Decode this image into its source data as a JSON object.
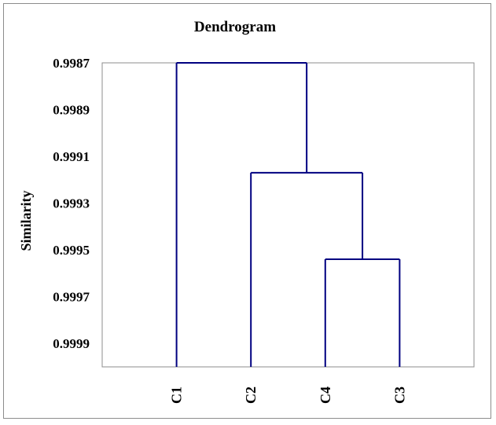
{
  "chart_data": {
    "type": "dendrogram",
    "title": "Dendrogram",
    "ylabel": "Similarity",
    "xlabel": "",
    "ylim": [
      0.9987,
      1.0
    ],
    "y_axis_reversed": true,
    "y_ticks": [
      "0.9987",
      "0.9989",
      "0.9991",
      "0.9993",
      "0.9995",
      "0.9997",
      "0.9999"
    ],
    "leaves": [
      "C1",
      "C2",
      "C4",
      "C3"
    ],
    "merges": [
      {
        "left": "C4",
        "right": "C3",
        "similarity": 0.99954
      },
      {
        "left": "C2",
        "right": "C4+C3",
        "similarity": 0.99917
      },
      {
        "left": "C1",
        "right": "C2+C4+C3",
        "similarity": 0.9987
      }
    ],
    "grid": false,
    "legend": "none",
    "line_color": "#000080"
  }
}
